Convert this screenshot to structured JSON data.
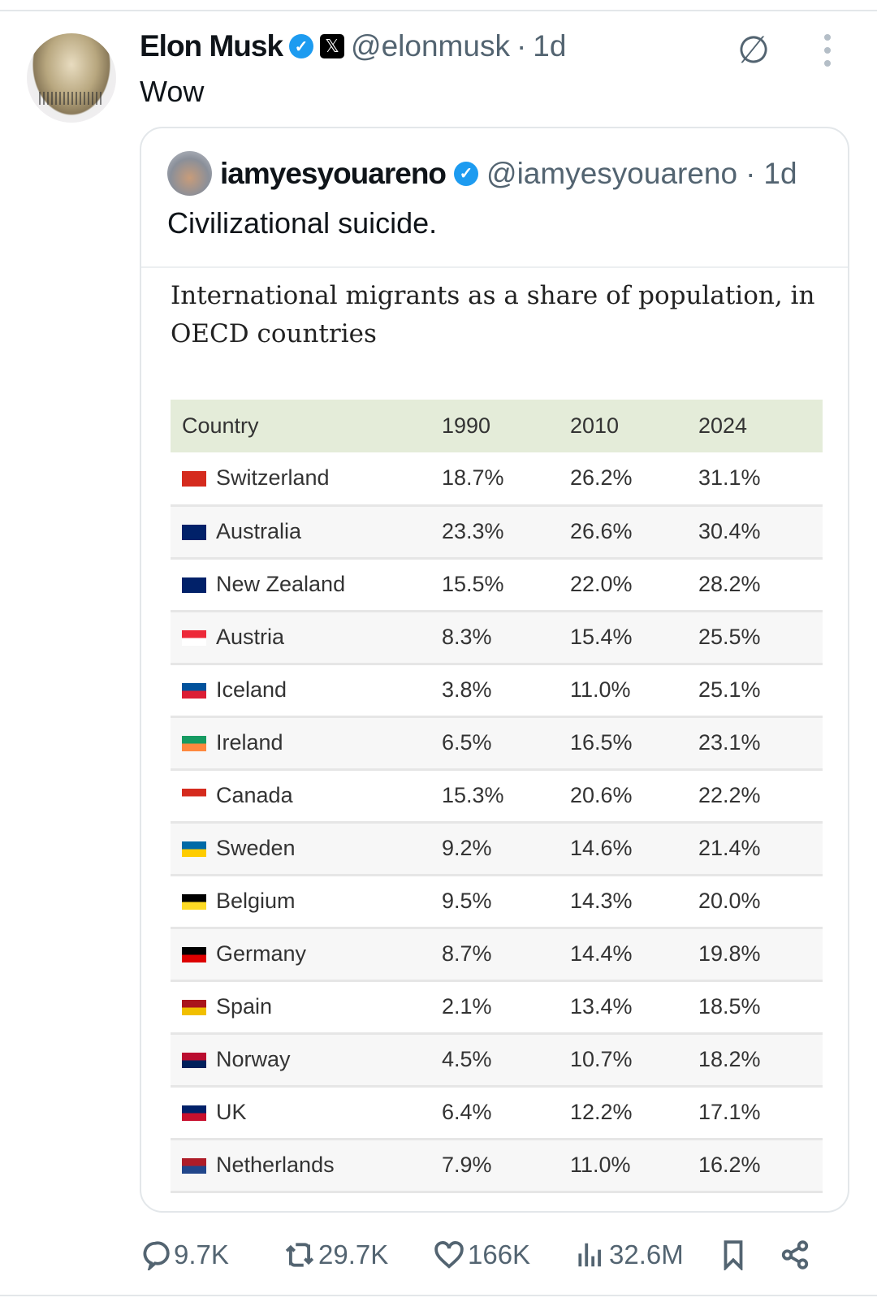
{
  "post": {
    "author": "Elon Musk",
    "handle": "@elonmusk",
    "time": "1d",
    "text": "Wow"
  },
  "quote": {
    "author": "iamyesyouareno",
    "handle": "@iamyesyouareno",
    "time": "1d",
    "text": "Civilizational suicide."
  },
  "table": {
    "title": "International migrants as a share of population, in OECD countries",
    "headers": [
      "Country",
      "1990",
      "2010",
      "2024"
    ],
    "rows": [
      {
        "country": "Switzerland",
        "flag": [
          "#d52b1e",
          "#d52b1e"
        ],
        "v": [
          "18.7%",
          "26.2%",
          "31.1%"
        ]
      },
      {
        "country": "Australia",
        "flag": [
          "#012169",
          "#012169"
        ],
        "v": [
          "23.3%",
          "26.6%",
          "30.4%"
        ]
      },
      {
        "country": "New Zealand",
        "flag": [
          "#012169",
          "#012169"
        ],
        "v": [
          "15.5%",
          "22.0%",
          "28.2%"
        ]
      },
      {
        "country": "Austria",
        "flag": [
          "#ed2939",
          "#ffffff"
        ],
        "v": [
          "8.3%",
          "15.4%",
          "25.5%"
        ]
      },
      {
        "country": "Iceland",
        "flag": [
          "#02529c",
          "#dc1e35"
        ],
        "v": [
          "3.8%",
          "11.0%",
          "25.1%"
        ]
      },
      {
        "country": "Ireland",
        "flag": [
          "#169b62",
          "#ff883e"
        ],
        "v": [
          "6.5%",
          "16.5%",
          "23.1%"
        ]
      },
      {
        "country": "Canada",
        "flag": [
          "#d52b1e",
          "#ffffff"
        ],
        "v": [
          "15.3%",
          "20.6%",
          "22.2%"
        ]
      },
      {
        "country": "Sweden",
        "flag": [
          "#006aa7",
          "#fecc00"
        ],
        "v": [
          "9.2%",
          "14.6%",
          "21.4%"
        ]
      },
      {
        "country": "Belgium",
        "flag": [
          "#000000",
          "#fdda24"
        ],
        "v": [
          "9.5%",
          "14.3%",
          "20.0%"
        ]
      },
      {
        "country": "Germany",
        "flag": [
          "#000000",
          "#dd0000"
        ],
        "v": [
          "8.7%",
          "14.4%",
          "19.8%"
        ]
      },
      {
        "country": "Spain",
        "flag": [
          "#aa151b",
          "#f1bf00"
        ],
        "v": [
          "2.1%",
          "13.4%",
          "18.5%"
        ]
      },
      {
        "country": "Norway",
        "flag": [
          "#ba0c2f",
          "#00205b"
        ],
        "v": [
          "4.5%",
          "10.7%",
          "18.2%"
        ]
      },
      {
        "country": "UK",
        "flag": [
          "#012169",
          "#c8102e"
        ],
        "v": [
          "6.4%",
          "12.2%",
          "17.1%"
        ]
      },
      {
        "country": "Netherlands",
        "flag": [
          "#ae1c28",
          "#21468b"
        ],
        "v": [
          "7.9%",
          "11.0%",
          "16.2%"
        ]
      }
    ]
  },
  "actions": {
    "replies": "9.7K",
    "reposts": "29.7K",
    "likes": "166K",
    "views": "32.6M"
  }
}
